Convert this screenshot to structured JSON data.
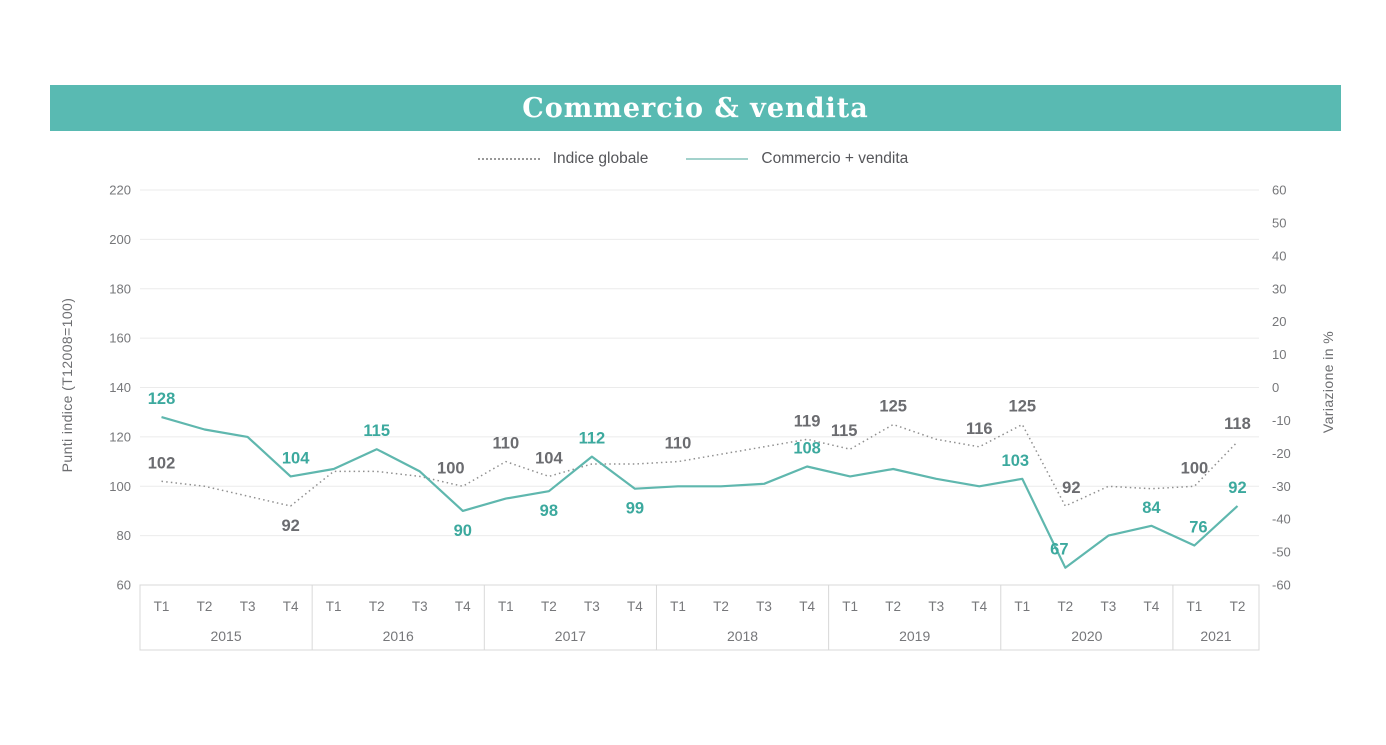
{
  "title": "Commercio & vendita",
  "colors": {
    "band_teal": "#59bab2",
    "teal_line": "#5fb7ae",
    "teal_label": "#3ca99e",
    "gray_line": "#909090",
    "gray_label": "#6b6c70",
    "tick_label": "#76777a",
    "gridline": "#ebebeb",
    "band_border": "#d8d8d8",
    "legend_teal_swatch": "#a3d2cc",
    "legend_gray_swatch": "#999999"
  },
  "legend": [
    {
      "label": "Indice globale",
      "type": "dotted",
      "color": "#999999"
    },
    {
      "label": "Commercio + vendita",
      "type": "solid",
      "color": "#a3d2cc"
    }
  ],
  "left_axis": {
    "title": "Punti indice (T12008=100)",
    "ticks": [
      220,
      200,
      180,
      160,
      140,
      120,
      100,
      80,
      60
    ]
  },
  "right_axis": {
    "title": "Variazione in %",
    "ticks": [
      60,
      50,
      40,
      30,
      20,
      10,
      0,
      -10,
      -20,
      -30,
      -40,
      -50,
      -60
    ]
  },
  "x_axis": {
    "years": [
      {
        "label": "2015",
        "quarters": [
          "T1",
          "T2",
          "T3",
          "T4"
        ]
      },
      {
        "label": "2016",
        "quarters": [
          "T1",
          "T2",
          "T3",
          "T4"
        ]
      },
      {
        "label": "2017",
        "quarters": [
          "T1",
          "T2",
          "T3",
          "T4"
        ]
      },
      {
        "label": "2018",
        "quarters": [
          "T1",
          "T2",
          "T3",
          "T4"
        ]
      },
      {
        "label": "2019",
        "quarters": [
          "T1",
          "T2",
          "T3",
          "T4"
        ]
      },
      {
        "label": "2020",
        "quarters": [
          "T1",
          "T2",
          "T3",
          "T4"
        ]
      },
      {
        "label": "2021",
        "quarters": [
          "T1",
          "T2"
        ]
      }
    ]
  },
  "chart_data": {
    "type": "line",
    "title": "Commercio & vendita",
    "xlabel": "",
    "ylabel_left": "Punti indice (T12008=100)",
    "ylabel_right": "Variazione in %",
    "left_axis_range": [
      60,
      220
    ],
    "right_axis_range": [
      -60,
      60
    ],
    "grid": "horizontal-left-ticks-only",
    "legend_position": "top-center",
    "categories": [
      "2015 T1",
      "2015 T2",
      "2015 T3",
      "2015 T4",
      "2016 T1",
      "2016 T2",
      "2016 T3",
      "2016 T4",
      "2017 T1",
      "2017 T2",
      "2017 T3",
      "2017 T4",
      "2018 T1",
      "2018 T2",
      "2018 T3",
      "2018 T4",
      "2019 T1",
      "2019 T2",
      "2019 T3",
      "2019 T4",
      "2020 T1",
      "2020 T2",
      "2020 T3",
      "2020 T4",
      "2021 T1",
      "2021 T2"
    ],
    "series": [
      {
        "name": "Indice globale",
        "style": "dotted",
        "color": "#909090",
        "label_color": "#6b6c70",
        "values": [
          102,
          100,
          96,
          92,
          106,
          106,
          104,
          100,
          110,
          104,
          109,
          109,
          110,
          113,
          116,
          119,
          115,
          125,
          119,
          116,
          125,
          92,
          100,
          99,
          100,
          118
        ],
        "point_labels": [
          {
            "i": 0,
            "text": "102",
            "pos": "above"
          },
          {
            "i": 3,
            "text": "92",
            "pos": "below"
          },
          {
            "i": 7,
            "text": "100",
            "pos": "above",
            "dx": -12
          },
          {
            "i": 8,
            "text": "110",
            "pos": "above"
          },
          {
            "i": 9,
            "text": "104",
            "pos": "above"
          },
          {
            "i": 12,
            "text": "110",
            "pos": "above"
          },
          {
            "i": 15,
            "text": "119",
            "pos": "above"
          },
          {
            "i": 16,
            "text": "115",
            "pos": "above",
            "dx": -6
          },
          {
            "i": 17,
            "text": "125",
            "pos": "above"
          },
          {
            "i": 19,
            "text": "116",
            "pos": "above"
          },
          {
            "i": 20,
            "text": "125",
            "pos": "above"
          },
          {
            "i": 21,
            "text": "92",
            "pos": "above",
            "dx": 6
          },
          {
            "i": 24,
            "text": "100",
            "pos": "above"
          },
          {
            "i": 25,
            "text": "118",
            "pos": "above"
          }
        ]
      },
      {
        "name": "Commercio + vendita",
        "style": "solid",
        "color": "#5fb7ae",
        "label_color": "#3ca99e",
        "values": [
          128,
          123,
          120,
          104,
          107,
          115,
          106,
          90,
          95,
          98,
          112,
          99,
          100,
          100,
          101,
          108,
          104,
          107,
          103,
          100,
          103,
          67,
          80,
          84,
          76,
          92
        ],
        "point_labels": [
          {
            "i": 0,
            "text": "128",
            "pos": "above"
          },
          {
            "i": 3,
            "text": "104",
            "pos": "above",
            "dx": 5
          },
          {
            "i": 5,
            "text": "115",
            "pos": "above"
          },
          {
            "i": 7,
            "text": "90",
            "pos": "below"
          },
          {
            "i": 9,
            "text": "98",
            "pos": "below"
          },
          {
            "i": 10,
            "text": "112",
            "pos": "above"
          },
          {
            "i": 11,
            "text": "99",
            "pos": "below"
          },
          {
            "i": 15,
            "text": "108",
            "pos": "above"
          },
          {
            "i": 20,
            "text": "103",
            "pos": "above",
            "dx": -7
          },
          {
            "i": 21,
            "text": "67",
            "pos": "above",
            "dx": -6
          },
          {
            "i": 23,
            "text": "84",
            "pos": "above"
          },
          {
            "i": 24,
            "text": "76",
            "pos": "above",
            "dx": 4
          },
          {
            "i": 25,
            "text": "92",
            "pos": "above"
          }
        ]
      }
    ],
    "layout": {
      "plot_left": 140,
      "plot_right": 1259,
      "plot_top": 190,
      "plot_bottom": 585,
      "band_bottom": 650
    }
  }
}
